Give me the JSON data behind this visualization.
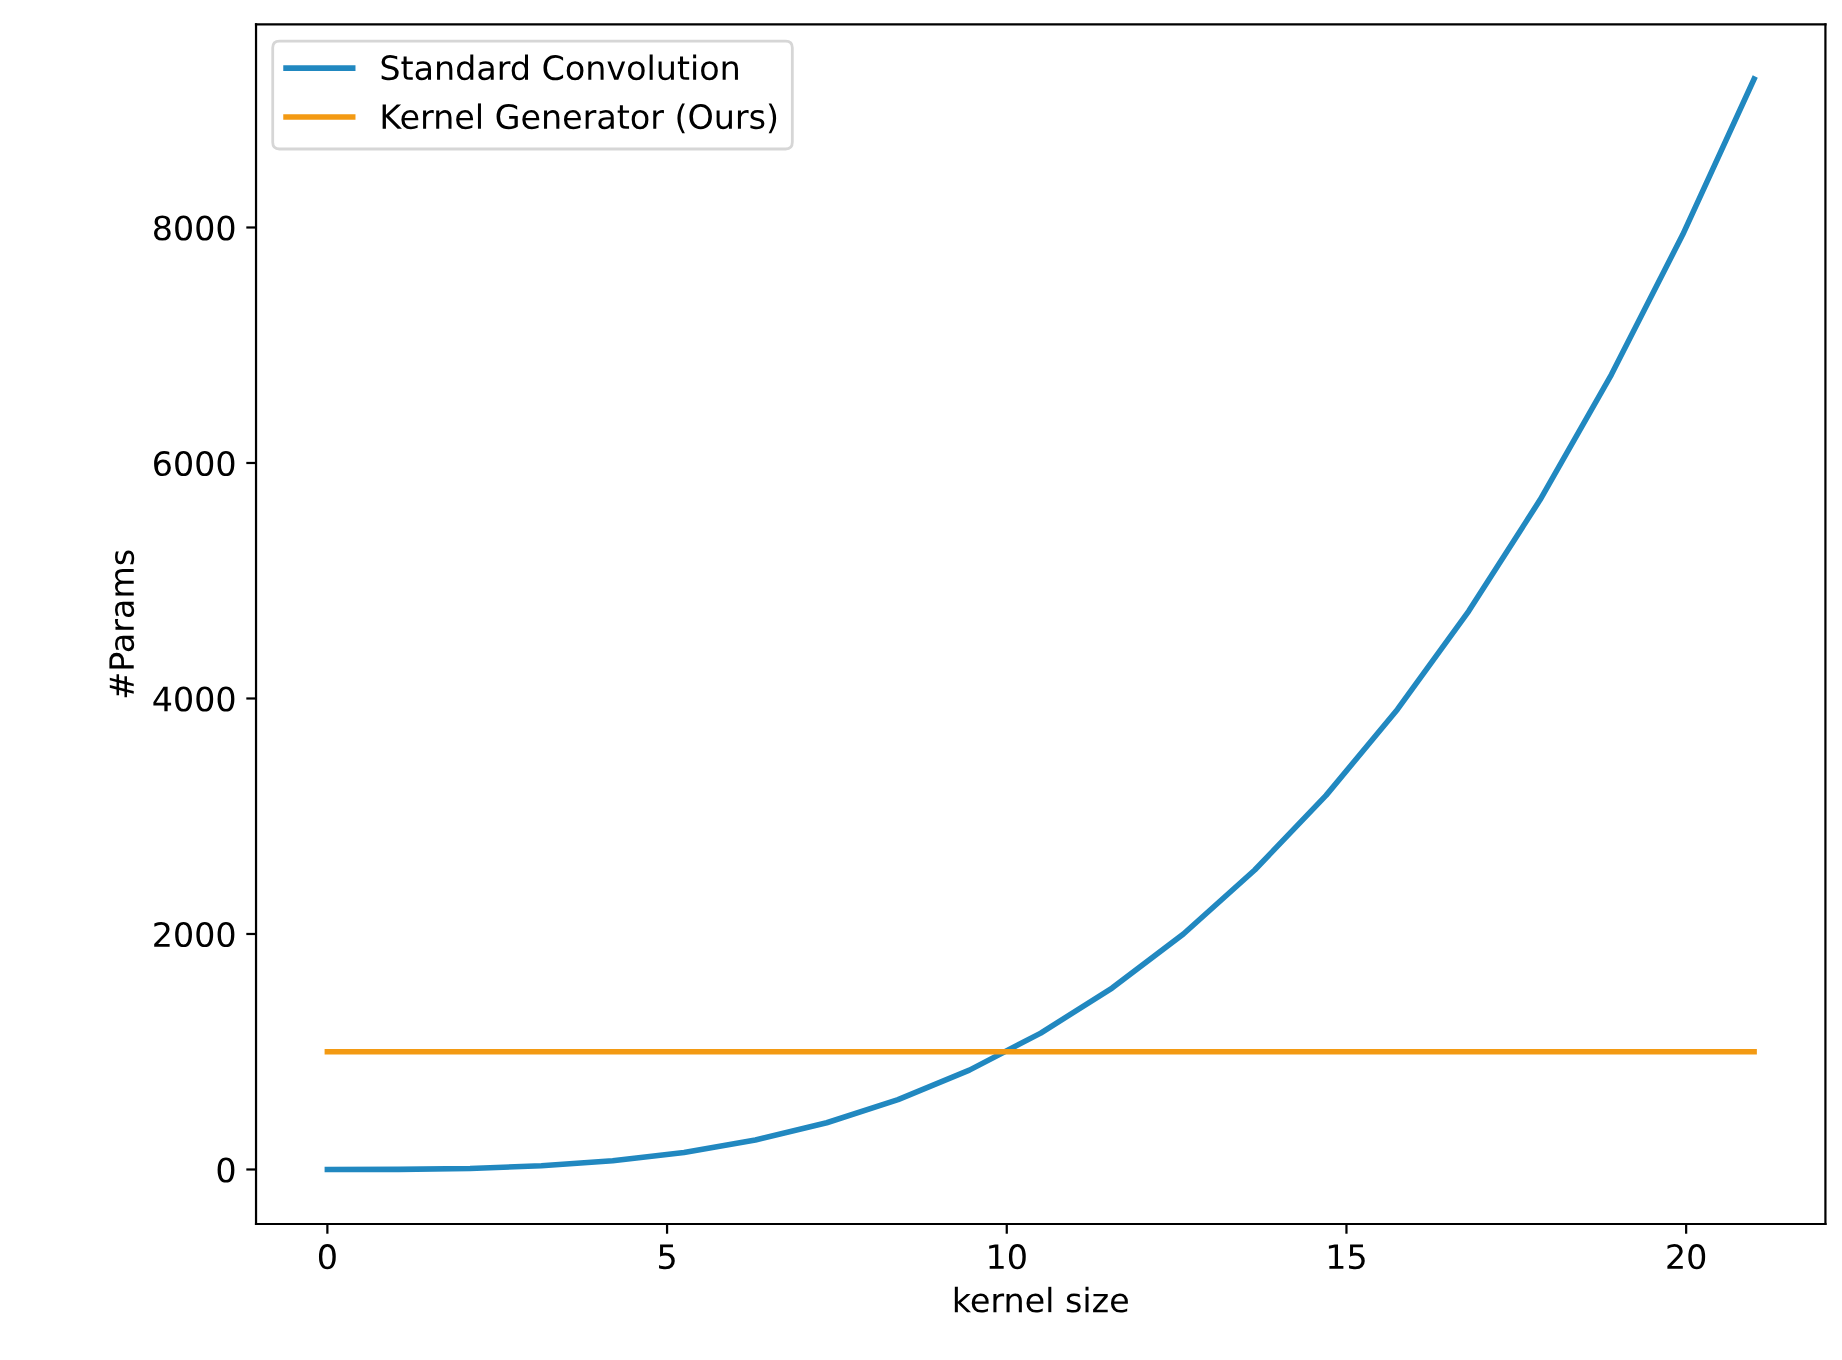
{
  "chart_data": {
    "type": "line",
    "xlabel": "kernel size",
    "ylabel": "#Params",
    "series": [
      {
        "name": "Standard Convolution",
        "color": "#2188c0",
        "x": [
          0,
          1.05,
          2.1,
          3.15,
          4.2,
          5.25,
          6.3,
          7.35,
          8.4,
          9.45,
          10.5,
          11.55,
          12.6,
          13.65,
          14.7,
          15.75,
          16.8,
          17.85,
          18.9,
          19.95,
          21
        ],
        "values": [
          0,
          1,
          9,
          31,
          74,
          145,
          250,
          397,
          593,
          844,
          1158,
          1541,
          2000,
          2543,
          3177,
          3907,
          4742,
          5687,
          6751,
          7940,
          9261
        ]
      },
      {
        "name": "Kernel Generator (Ours)",
        "color": "#f39a13",
        "x": [
          0,
          21
        ],
        "values": [
          1000,
          1000
        ]
      }
    ],
    "xlim": [
      -1.05,
      22.05
    ],
    "ylim": [
      -463,
      9724
    ],
    "xticks": [
      0,
      5,
      10,
      15,
      20
    ],
    "yticks": [
      0,
      2000,
      4000,
      6000,
      8000
    ],
    "legend": "top left",
    "grid": false
  }
}
